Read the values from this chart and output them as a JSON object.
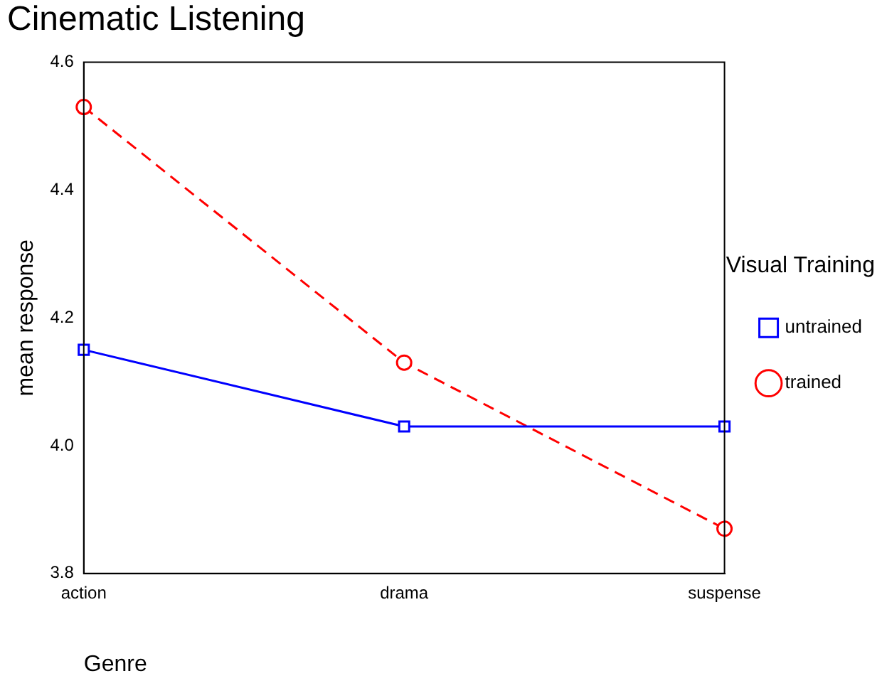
{
  "chart_data": {
    "type": "line",
    "title": "Cinematic Listening",
    "xlabel": "Genre",
    "ylabel": "mean response",
    "legend_title": "Visual Training",
    "categories": [
      "action",
      "drama",
      "suspense"
    ],
    "series": [
      {
        "name": "untrained",
        "color": "#0000ff",
        "values": [
          4.15,
          4.03,
          4.03
        ],
        "marker": "square",
        "line_style": "solid"
      },
      {
        "name": "trained",
        "color": "#ff0000",
        "values": [
          4.53,
          4.13,
          3.87
        ],
        "marker": "circle",
        "line_style": "dashed"
      }
    ],
    "ylim": [
      3.8,
      4.6
    ],
    "yticks": [
      {
        "value": 3.8,
        "label": "3.8"
      },
      {
        "value": 4.0,
        "label": "4.0"
      },
      {
        "value": 4.2,
        "label": "4.2"
      },
      {
        "value": 4.4,
        "label": "4.4"
      },
      {
        "value": 4.6,
        "label": "4.6"
      }
    ],
    "grid": false,
    "legend": "right"
  }
}
